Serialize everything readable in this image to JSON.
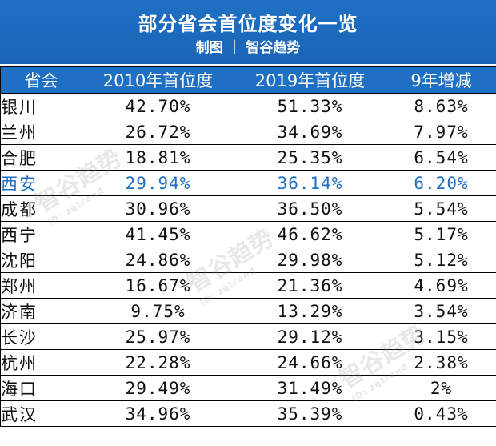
{
  "header": {
    "title": "部分省会首位度变化一览",
    "subtitle": "制图 ｜ 智谷趋势"
  },
  "chart_data": {
    "type": "table",
    "columns": [
      "省会",
      "2010年首位度",
      "2019年首位度",
      "9年增减"
    ],
    "rows": [
      {
        "city": "银川",
        "y2010": "42.70%",
        "y2019": "51.33%",
        "change": "8.63%"
      },
      {
        "city": "兰州",
        "y2010": "26.72%",
        "y2019": "34.69%",
        "change": "7.97%"
      },
      {
        "city": "合肥",
        "y2010": "18.81%",
        "y2019": "25.35%",
        "change": "6.54%"
      },
      {
        "city": "西安",
        "y2010": "29.94%",
        "y2019": "36.14%",
        "change": "6.20%"
      },
      {
        "city": "成都",
        "y2010": "30.96%",
        "y2019": "36.50%",
        "change": "5.54%"
      },
      {
        "city": "西宁",
        "y2010": "41.45%",
        "y2019": "46.62%",
        "change": "5.17%"
      },
      {
        "city": "沈阳",
        "y2010": "24.86%",
        "y2019": "29.98%",
        "change": "5.12%"
      },
      {
        "city": "郑州",
        "y2010": "16.67%",
        "y2019": "21.36%",
        "change": "4.69%"
      },
      {
        "city": "济南",
        "y2010": "9.75%",
        "y2019": "13.29%",
        "change": "3.54%"
      },
      {
        "city": "长沙",
        "y2010": "25.97%",
        "y2019": "29.12%",
        "change": "3.15%"
      },
      {
        "city": "杭州",
        "y2010": "22.28%",
        "y2019": "24.66%",
        "change": "2.38%"
      },
      {
        "city": "海口",
        "y2010": "29.49%",
        "y2019": "31.49%",
        "change": "2%"
      },
      {
        "city": "武汉",
        "y2010": "34.96%",
        "y2019": "35.39%",
        "change": "0.43%"
      }
    ],
    "highlight_city": "西安"
  },
  "colors": {
    "header_bg": "#1f6fc3",
    "highlight_text": "#1f6fc3",
    "border": "#000000"
  },
  "watermark": {
    "text": "智谷趋势",
    "id_text": "ID: zgtrend"
  }
}
